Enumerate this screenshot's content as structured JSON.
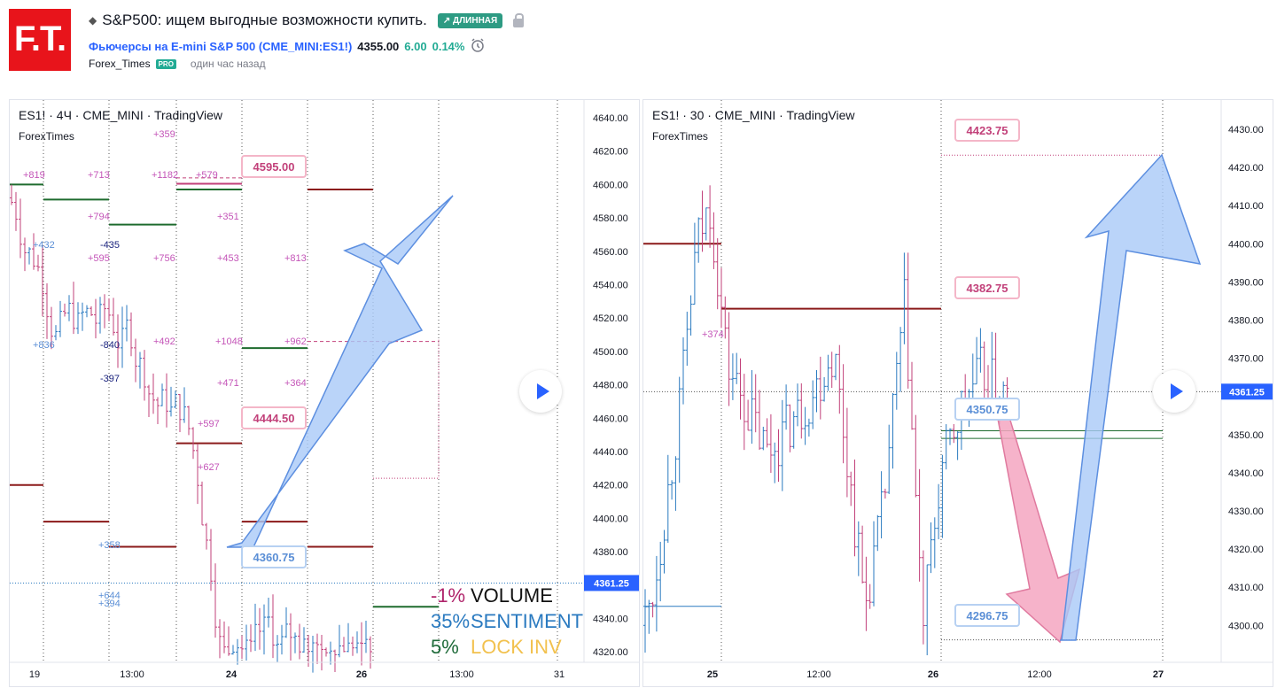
{
  "header": {
    "logo_text": "F.T.",
    "title": "S&P500: ищем выгодные возможности купить.",
    "badge": "↗ ДЛИННАЯ",
    "symbol_name": "Фьючерсы на E-mini S&P 500",
    "symbol_code_open": "(",
    "symbol_code": "CME_MINI:ES1!",
    "symbol_code_close": ")",
    "price": "4355.00",
    "change": "6.00",
    "change_pct": "0.14%",
    "author": "Forex_Times",
    "pro_badge": "PRO",
    "time_ago": "один час назад"
  },
  "chart_left": {
    "title": "ES1! · 4Ч · CME_MINI · TradingView",
    "author": "ForexTimes",
    "price_ticks": [
      "4640.00",
      "4620.00",
      "4600.00",
      "4580.00",
      "4560.00",
      "4540.00",
      "4520.00",
      "4500.00",
      "4480.00",
      "4460.00",
      "4440.00",
      "4420.00",
      "4400.00",
      "4380.00",
      "4340.00",
      "4320.00"
    ],
    "time_ticks": [
      "19",
      "13:00",
      "24",
      "26",
      "13:00",
      "31"
    ],
    "current_price_tag": "4361.25",
    "callouts": [
      "4595.00",
      "4444.50",
      "4360.75"
    ],
    "delta_labels_magenta": [
      "+819",
      "+713",
      "+1182",
      "+579",
      "+794",
      "+595",
      "+756",
      "+453",
      "+813",
      "+351",
      "+359",
      "+492",
      "+1048",
      "+962",
      "+471",
      "+364",
      "+597",
      "+627"
    ],
    "delta_labels_blue": [
      "+432",
      "-435",
      "+836",
      "-840",
      "-397",
      "+358",
      "+644",
      "+394"
    ],
    "legend": [
      {
        "value": "-1%",
        "label": "VOLUME",
        "value_color": "#b0246b",
        "label_color": "#111111"
      },
      {
        "value": "35%",
        "label": "SENTIMENT",
        "value_color": "#2a7ac0",
        "label_color": "#2a7ac0"
      },
      {
        "value": "5%",
        "label": "LOCK INV",
        "value_color": "#1f6b3a",
        "label_color": "#f2c14e"
      }
    ]
  },
  "chart_right": {
    "title": "ES1! · 30 · CME_MINI · TradingView",
    "author": "ForexTimes",
    "price_ticks": [
      "4430.00",
      "4420.00",
      "4410.00",
      "4400.00",
      "4390.00",
      "4380.00",
      "4370.00",
      "4350.00",
      "4340.00",
      "4330.00",
      "4320.00",
      "4310.00",
      "4300.00"
    ],
    "time_ticks": [
      "25",
      "12:00",
      "26",
      "12:00",
      "27"
    ],
    "current_price_tag": "4361.25",
    "callouts": [
      "4423.75",
      "4382.75",
      "4350.75",
      "4296.75"
    ],
    "delta_labels_magenta": [
      "+374"
    ]
  },
  "colors": {
    "up": "#2a7ac0",
    "down": "#c2417a",
    "level": "#8b1a1a",
    "green_level": "#1e6b2e",
    "arrow_blue": "#9fc3f5",
    "arrow_pink": "#f4a3be",
    "accent": "#2962ff"
  }
}
